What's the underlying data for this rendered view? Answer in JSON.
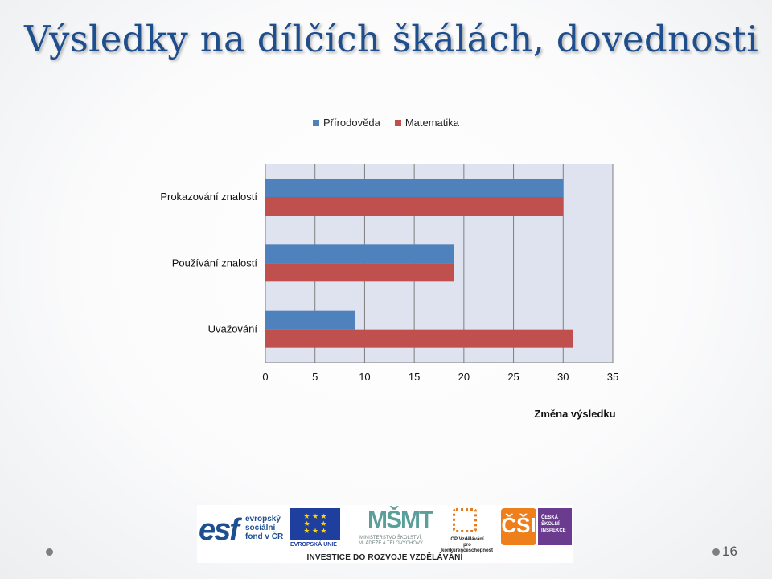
{
  "slide": {
    "title": "Výsledky na dílčích škálách, dovednosti",
    "page_number": "16"
  },
  "chart_data": {
    "type": "bar",
    "orientation": "horizontal",
    "categories": [
      "Prokazování znalostí",
      "Používání znalostí",
      "Uvažování"
    ],
    "series": [
      {
        "name": "Přírodověda",
        "color": "#4f81bd",
        "values": [
          30,
          19,
          9
        ]
      },
      {
        "name": "Matematika",
        "color": "#c0504d",
        "values": [
          30,
          19,
          31
        ]
      }
    ],
    "xlabel": "Změna výsledku",
    "xlim": [
      0,
      35
    ],
    "xticks": [
      0,
      5,
      10,
      15,
      20,
      25,
      30,
      35
    ],
    "grid": "vertical",
    "legend": "top",
    "plot_background": "#dfe3ef"
  },
  "footer_logos": {
    "esf_letters": "esf",
    "esf_text": [
      "evropský",
      "sociální",
      "fond v ČR"
    ],
    "eu_text": "EVROPSKÁ UNIE",
    "msmt_mark": "MŠMT",
    "msmt_text": [
      "MINISTERSTVO ŠKOLSTVÍ,",
      "MLÁDEŽE A TĚLOVÝCHOVY"
    ],
    "op_text": [
      "OP Vzdělávání",
      "pro konkurenceschopnost"
    ],
    "csi_mark": "ČŠI",
    "csi_text": [
      "ČESKÁ",
      "ŠKOLNÍ",
      "INSPEKCE"
    ],
    "invest_text": "INVESTICE DO ROZVOJE VZDĚLÁVÁNÍ"
  }
}
